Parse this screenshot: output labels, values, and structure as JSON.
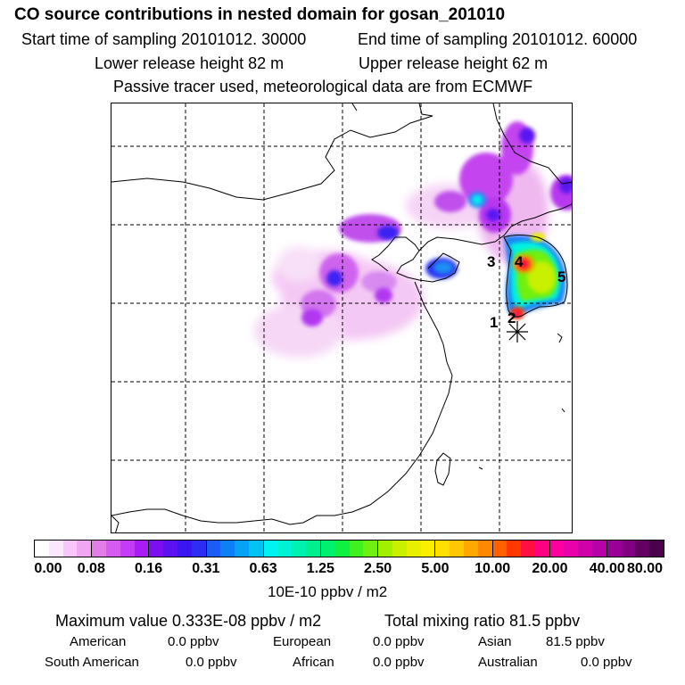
{
  "header": {
    "title": "CO  source contributions in nested domain for gosan_201010",
    "start_time": "Start time of sampling 20101012. 30000",
    "end_time": "End time of sampling 20101012. 60000",
    "lower_height": "Lower release height   82 m",
    "upper_height": "Upper release height   62 m",
    "tracer_info": "Passive tracer used, meteorological data are from ECMWF"
  },
  "map": {
    "region_labels": [
      "1",
      "2",
      "3",
      "4",
      "5"
    ]
  },
  "colorbar": {
    "ticks": [
      "0.00",
      "0.08",
      "0.16",
      "0.31",
      "0.63",
      "1.25",
      "2.50",
      "5.00",
      "10.00",
      "20.00",
      "40.00",
      "80.00"
    ],
    "unit": "10E-10 ppbv / m2",
    "colors": [
      "#ffffff",
      "#fce8fc",
      "#f7c7f7",
      "#f0a6f0",
      "#e27ee6",
      "#d45cef",
      "#c43cf5",
      "#a81cf5",
      "#7a10f0",
      "#5a12f0",
      "#3a16f2",
      "#2d2df4",
      "#1a5cf4",
      "#0c80f4",
      "#06a2f4",
      "#04c2f4",
      "#00f2f2",
      "#00f2d2",
      "#00f2b0",
      "#00f090",
      "#00f070",
      "#10f040",
      "#40f020",
      "#70f010",
      "#a0f000",
      "#c8f000",
      "#e8f000",
      "#f8f000",
      "#ffe000",
      "#ffc800",
      "#ffa800",
      "#ff8800",
      "#ff6000",
      "#ff3800",
      "#ff1040",
      "#ff0080",
      "#ff00a0",
      "#e800a8",
      "#d000a8",
      "#b800a8",
      "#9a0098",
      "#800080",
      "#640064",
      "#4a004a"
    ]
  },
  "footer": {
    "max_value": "Maximum value  0.333E-08 ppbv / m2",
    "total_mixing": "Total mixing ratio      81.5 ppbv",
    "american": "American",
    "american_val": "0.0 ppbv",
    "european": "European",
    "european_val": "0.0 ppbv",
    "asian": "Asian",
    "asian_val": "81.5 ppbv",
    "south_american": "South American",
    "south_american_val": "0.0 ppbv",
    "african": "African",
    "african_val": "0.0 ppbv",
    "australian": "Australian",
    "australian_val": "0.0 ppbv"
  }
}
